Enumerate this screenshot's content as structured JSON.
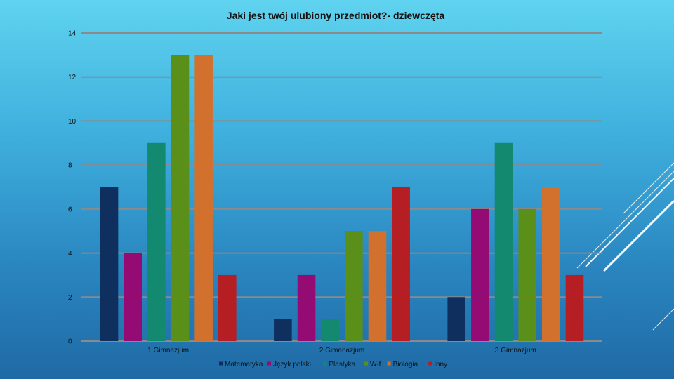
{
  "chart_data": {
    "type": "bar",
    "title": "Jaki jest twój ulubiony przedmiot?- dziewczęta",
    "xlabel": "",
    "ylabel": "",
    "ylim": [
      0,
      14
    ],
    "yticks": [
      0,
      2,
      4,
      6,
      8,
      10,
      12,
      14
    ],
    "grid": true,
    "legend_position": "bottom",
    "categories": [
      "1 Gimnazjum",
      "2 Gimanazjum",
      "3 Gimnazjum"
    ],
    "series": [
      {
        "name": "Matematyka",
        "color": "#0f2f5e",
        "values": [
          7,
          1,
          2
        ]
      },
      {
        "name": "Język polski",
        "color": "#930b73",
        "values": [
          4,
          3,
          6
        ]
      },
      {
        "name": "Plastyka",
        "color": "#138a70",
        "values": [
          9,
          1,
          9
        ]
      },
      {
        "name": "W-f",
        "color": "#5a8f1a",
        "values": [
          13,
          5,
          6
        ]
      },
      {
        "name": "Biologia",
        "color": "#d2712e",
        "values": [
          13,
          5,
          7
        ]
      },
      {
        "name": "Inny",
        "color": "#b51e23",
        "values": [
          3,
          7,
          3
        ]
      }
    ]
  }
}
